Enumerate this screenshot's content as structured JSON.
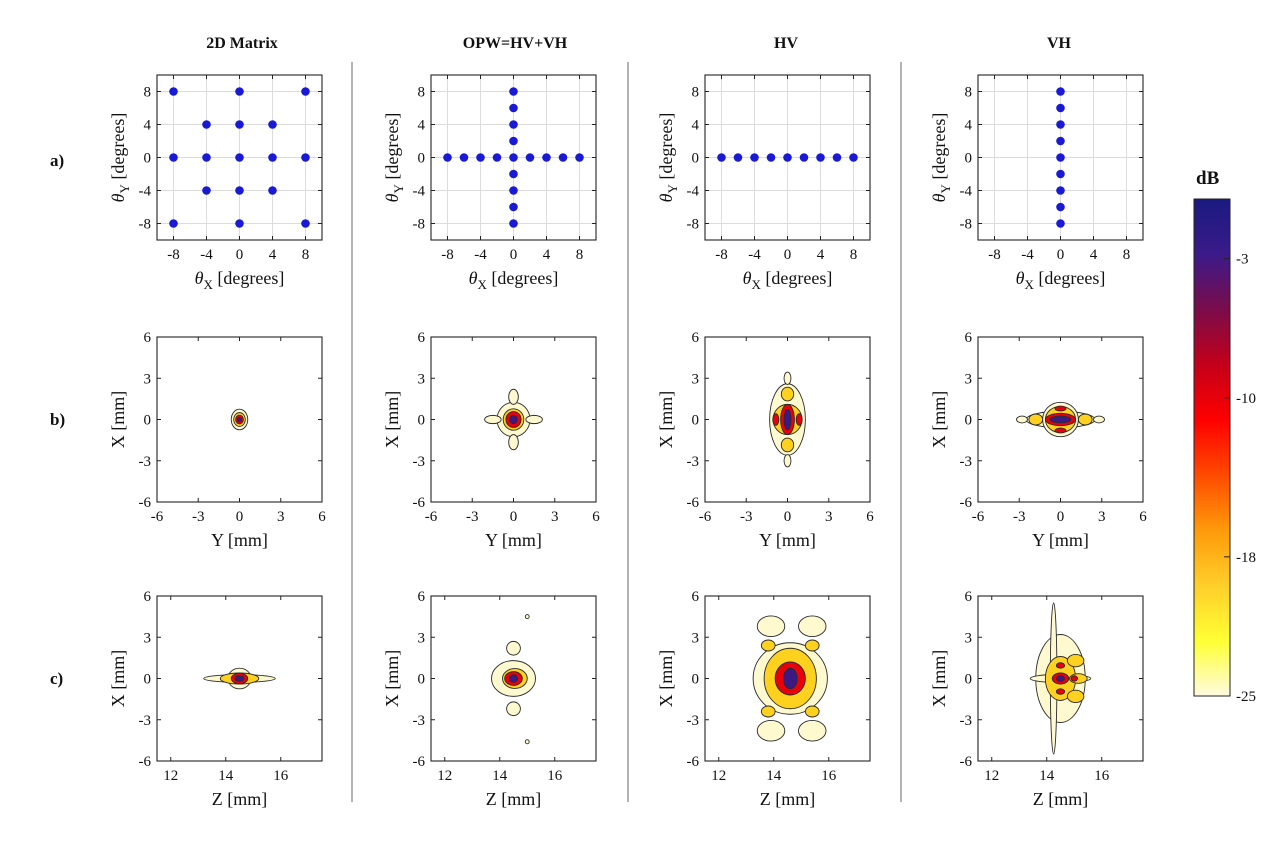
{
  "figure": {
    "columns": [
      "2D Matrix",
      "OPW=HV+VH",
      "HV",
      "VH"
    ],
    "rows": [
      "a)",
      "b)",
      "c)"
    ]
  },
  "chart_data": [
    {
      "row": "a",
      "column": "2D Matrix",
      "type": "scatter",
      "xlabel": "θX [degrees]",
      "ylabel": "θY [degrees]",
      "xlim": [
        -10,
        10
      ],
      "ylim": [
        -10,
        10
      ],
      "xticks": [
        -8,
        -4,
        0,
        4,
        8
      ],
      "yticks": [
        -8,
        -4,
        0,
        4,
        8
      ],
      "grid": true,
      "marker_color": "#1a1ad6",
      "points": [
        [
          -8,
          8
        ],
        [
          0,
          8
        ],
        [
          8,
          8
        ],
        [
          -4,
          4
        ],
        [
          0,
          4
        ],
        [
          4,
          4
        ],
        [
          -8,
          0
        ],
        [
          -4,
          0
        ],
        [
          0,
          0
        ],
        [
          4,
          0
        ],
        [
          8,
          0
        ],
        [
          -4,
          -4
        ],
        [
          0,
          -4
        ],
        [
          4,
          -4
        ],
        [
          -8,
          -8
        ],
        [
          0,
          -8
        ],
        [
          8,
          -8
        ]
      ]
    },
    {
      "row": "a",
      "column": "OPW=HV+VH",
      "type": "scatter",
      "xlabel": "θX [degrees]",
      "ylabel": "θY [degrees]",
      "xlim": [
        -10,
        10
      ],
      "ylim": [
        -10,
        10
      ],
      "xticks": [
        -8,
        -4,
        0,
        4,
        8
      ],
      "yticks": [
        -8,
        -4,
        0,
        4,
        8
      ],
      "grid": true,
      "marker_color": "#1a1ad6",
      "points": [
        [
          -8,
          0
        ],
        [
          -6,
          0
        ],
        [
          -4,
          0
        ],
        [
          -2,
          0
        ],
        [
          0,
          0
        ],
        [
          2,
          0
        ],
        [
          4,
          0
        ],
        [
          6,
          0
        ],
        [
          8,
          0
        ],
        [
          0,
          8
        ],
        [
          0,
          6
        ],
        [
          0,
          4
        ],
        [
          0,
          2
        ],
        [
          0,
          -2
        ],
        [
          0,
          -4
        ],
        [
          0,
          -6
        ],
        [
          0,
          -8
        ]
      ]
    },
    {
      "row": "a",
      "column": "HV",
      "type": "scatter",
      "xlabel": "θX [degrees]",
      "ylabel": "θY [degrees]",
      "xlim": [
        -10,
        10
      ],
      "ylim": [
        -10,
        10
      ],
      "xticks": [
        -8,
        -4,
        0,
        4,
        8
      ],
      "yticks": [
        -8,
        -4,
        0,
        4,
        8
      ],
      "grid": true,
      "marker_color": "#1a1ad6",
      "points": [
        [
          -8,
          0
        ],
        [
          -6,
          0
        ],
        [
          -4,
          0
        ],
        [
          -2,
          0
        ],
        [
          0,
          0
        ],
        [
          2,
          0
        ],
        [
          4,
          0
        ],
        [
          6,
          0
        ],
        [
          8,
          0
        ]
      ]
    },
    {
      "row": "a",
      "column": "VH",
      "type": "scatter",
      "xlabel": "θX [degrees]",
      "ylabel": "θY [degrees]",
      "xlim": [
        -10,
        10
      ],
      "ylim": [
        -10,
        10
      ],
      "xticks": [
        -8,
        -4,
        0,
        4,
        8
      ],
      "yticks": [
        -8,
        -4,
        0,
        4,
        8
      ],
      "grid": true,
      "marker_color": "#1a1ad6",
      "points": [
        [
          0,
          8
        ],
        [
          0,
          6
        ],
        [
          0,
          4
        ],
        [
          0,
          2
        ],
        [
          0,
          0
        ],
        [
          0,
          -2
        ],
        [
          0,
          -4
        ],
        [
          0,
          -6
        ],
        [
          0,
          -8
        ]
      ]
    },
    {
      "row": "b",
      "column": "2D Matrix",
      "type": "heatmap",
      "xlabel": "Y [mm]",
      "ylabel": "X [mm]",
      "xlim": [
        -6,
        6
      ],
      "ylim": [
        -6,
        6
      ],
      "xticks": [
        -6,
        -3,
        0,
        3,
        6
      ],
      "yticks": [
        -6,
        -3,
        0,
        3,
        6
      ],
      "grid": false,
      "contours": [
        {
          "level": -25,
          "shapes": [
            {
              "cx": 0,
              "cy": 0,
              "rx": 0.6,
              "ry": 0.75
            }
          ]
        },
        {
          "level": -18,
          "shapes": [
            {
              "cx": 0,
              "cy": 0,
              "rx": 0.42,
              "ry": 0.5
            }
          ]
        },
        {
          "level": -10,
          "shapes": [
            {
              "cx": 0,
              "cy": 0,
              "rx": 0.28,
              "ry": 0.32
            }
          ]
        },
        {
          "level": -3,
          "shapes": [
            {
              "cx": 0,
              "cy": 0,
              "rx": 0.14,
              "ry": 0.16
            }
          ]
        }
      ]
    },
    {
      "row": "b",
      "column": "OPW=HV+VH",
      "type": "heatmap",
      "xlabel": "Y [mm]",
      "ylabel": "X [mm]",
      "xlim": [
        -6,
        6
      ],
      "ylim": [
        -6,
        6
      ],
      "xticks": [
        -6,
        -3,
        0,
        3,
        6
      ],
      "yticks": [
        -6,
        -3,
        0,
        3,
        6
      ],
      "grid": false,
      "contours": [
        {
          "level": -25,
          "shapes": [
            {
              "cx": 0,
              "cy": 0,
              "rx": 1.2,
              "ry": 1.25
            },
            {
              "cx": 0,
              "cy": 1.65,
              "rx": 0.35,
              "ry": 0.55
            },
            {
              "cx": 0,
              "cy": -1.65,
              "rx": 0.35,
              "ry": 0.55
            },
            {
              "cx": 1.5,
              "cy": 0,
              "rx": 0.6,
              "ry": 0.3
            },
            {
              "cx": -1.5,
              "cy": 0,
              "rx": 0.6,
              "ry": 0.3
            }
          ]
        },
        {
          "level": -18,
          "shapes": [
            {
              "cx": 0,
              "cy": 0,
              "rx": 0.75,
              "ry": 0.78
            }
          ]
        },
        {
          "level": -10,
          "shapes": [
            {
              "cx": 0,
              "cy": 0,
              "rx": 0.55,
              "ry": 0.58
            }
          ]
        },
        {
          "level": -3,
          "shapes": [
            {
              "cx": 0,
              "cy": 0,
              "rx": 0.28,
              "ry": 0.3
            }
          ]
        }
      ]
    },
    {
      "row": "b",
      "column": "HV",
      "type": "heatmap",
      "xlabel": "Y [mm]",
      "ylabel": "X [mm]",
      "xlim": [
        -6,
        6
      ],
      "ylim": [
        -6,
        6
      ],
      "xticks": [
        -6,
        -3,
        0,
        3,
        6
      ],
      "yticks": [
        -6,
        -3,
        0,
        3,
        6
      ],
      "grid": false,
      "contours": [
        {
          "level": -25,
          "shapes": [
            {
              "cx": 0,
              "cy": 0,
              "rx": 1.3,
              "ry": 2.6
            },
            {
              "cx": 0,
              "cy": 3.0,
              "rx": 0.25,
              "ry": 0.45
            },
            {
              "cx": 0,
              "cy": -3.0,
              "rx": 0.25,
              "ry": 0.45
            }
          ]
        },
        {
          "level": -18,
          "shapes": [
            {
              "cx": 0,
              "cy": 0,
              "rx": 1.05,
              "ry": 1.1
            },
            {
              "cx": 0,
              "cy": 1.85,
              "rx": 0.45,
              "ry": 0.5
            },
            {
              "cx": 0,
              "cy": -1.85,
              "rx": 0.45,
              "ry": 0.5
            }
          ]
        },
        {
          "level": -10,
          "shapes": [
            {
              "cx": 0,
              "cy": 0,
              "rx": 0.5,
              "ry": 1.1
            },
            {
              "cx": -0.85,
              "cy": 0,
              "rx": 0.22,
              "ry": 0.42
            },
            {
              "cx": 0.85,
              "cy": 0,
              "rx": 0.22,
              "ry": 0.42
            }
          ]
        },
        {
          "level": -3,
          "shapes": [
            {
              "cx": 0,
              "cy": 0,
              "rx": 0.25,
              "ry": 0.75
            }
          ]
        }
      ]
    },
    {
      "row": "b",
      "column": "VH",
      "type": "heatmap",
      "xlabel": "Y [mm]",
      "ylabel": "X [mm]",
      "xlim": [
        -6,
        6
      ],
      "ylim": [
        -6,
        6
      ],
      "xticks": [
        -6,
        -3,
        0,
        3,
        6
      ],
      "yticks": [
        -6,
        -3,
        0,
        3,
        6
      ],
      "grid": false,
      "contours": [
        {
          "level": -25,
          "shapes": [
            {
              "cx": 0,
              "cy": 0,
              "rx": 2.5,
              "ry": 0.6
            },
            {
              "cx": 0,
              "cy": 0,
              "rx": 1.3,
              "ry": 1.25
            },
            {
              "cx": -2.8,
              "cy": 0,
              "rx": 0.4,
              "ry": 0.25
            },
            {
              "cx": 2.8,
              "cy": 0,
              "rx": 0.4,
              "ry": 0.25
            }
          ]
        },
        {
          "level": -18,
          "shapes": [
            {
              "cx": 0,
              "cy": 0,
              "rx": 1.1,
              "ry": 0.95
            },
            {
              "cx": -1.8,
              "cy": 0,
              "rx": 0.5,
              "ry": 0.4
            },
            {
              "cx": 1.8,
              "cy": 0,
              "rx": 0.5,
              "ry": 0.4
            }
          ]
        },
        {
          "level": -10,
          "shapes": [
            {
              "cx": 0,
              "cy": 0,
              "rx": 1.1,
              "ry": 0.45
            },
            {
              "cx": 0,
              "cy": 0.8,
              "rx": 0.4,
              "ry": 0.18
            },
            {
              "cx": 0,
              "cy": -0.8,
              "rx": 0.4,
              "ry": 0.18
            }
          ]
        },
        {
          "level": -3,
          "shapes": [
            {
              "cx": 0,
              "cy": 0,
              "rx": 0.75,
              "ry": 0.25
            }
          ]
        }
      ]
    },
    {
      "row": "c",
      "column": "2D Matrix",
      "type": "heatmap",
      "xlabel": "Z [mm]",
      "ylabel": "X [mm]",
      "xlim": [
        11.5,
        17.5
      ],
      "ylim": [
        -6,
        6
      ],
      "xticks": [
        12,
        14,
        16
      ],
      "yticks": [
        -6,
        -3,
        0,
        3,
        6
      ],
      "grid": false,
      "contours": [
        {
          "level": -25,
          "shapes": [
            {
              "cx": 14.5,
              "cy": 0,
              "rx": 1.3,
              "ry": 0.28
            },
            {
              "cx": 14.5,
              "cy": 0,
              "rx": 0.42,
              "ry": 0.75
            }
          ]
        },
        {
          "level": -18,
          "shapes": [
            {
              "cx": 14.5,
              "cy": 0,
              "rx": 0.7,
              "ry": 0.4
            }
          ]
        },
        {
          "level": -10,
          "shapes": [
            {
              "cx": 14.5,
              "cy": 0,
              "rx": 0.3,
              "ry": 0.38
            }
          ]
        },
        {
          "level": -3,
          "shapes": [
            {
              "cx": 14.5,
              "cy": 0,
              "rx": 0.16,
              "ry": 0.2
            }
          ]
        }
      ]
    },
    {
      "row": "c",
      "column": "OPW=HV+VH",
      "type": "heatmap",
      "xlabel": "Z [mm]",
      "ylabel": "X [mm]",
      "xlim": [
        11.5,
        17.5
      ],
      "ylim": [
        -6,
        6
      ],
      "xticks": [
        12,
        14,
        16
      ],
      "yticks": [
        -6,
        -3,
        0,
        3,
        6
      ],
      "grid": false,
      "contours": [
        {
          "level": -25,
          "shapes": [
            {
              "cx": 14.5,
              "cy": 0,
              "rx": 0.8,
              "ry": 1.3
            },
            {
              "cx": 14.5,
              "cy": 2.2,
              "rx": 0.25,
              "ry": 0.5
            },
            {
              "cx": 14.5,
              "cy": -2.2,
              "rx": 0.25,
              "ry": 0.5
            },
            {
              "cx": 15.0,
              "cy": 4.5,
              "rx": 0.07,
              "ry": 0.15
            },
            {
              "cx": 15.0,
              "cy": -4.6,
              "rx": 0.07,
              "ry": 0.15
            }
          ]
        },
        {
          "level": -18,
          "shapes": [
            {
              "cx": 14.55,
              "cy": 0,
              "rx": 0.45,
              "ry": 0.72
            }
          ]
        },
        {
          "level": -10,
          "shapes": [
            {
              "cx": 14.5,
              "cy": 0,
              "rx": 0.32,
              "ry": 0.5
            }
          ]
        },
        {
          "level": -3,
          "shapes": [
            {
              "cx": 14.5,
              "cy": 0,
              "rx": 0.15,
              "ry": 0.28
            }
          ]
        }
      ]
    },
    {
      "row": "c",
      "column": "HV",
      "type": "heatmap",
      "xlabel": "Z [mm]",
      "ylabel": "X [mm]",
      "xlim": [
        11.5,
        17.5
      ],
      "ylim": [
        -6,
        6
      ],
      "xticks": [
        12,
        14,
        16
      ],
      "yticks": [
        -6,
        -3,
        0,
        3,
        6
      ],
      "grid": false,
      "contours": [
        {
          "level": -25,
          "shapes": [
            {
              "cx": 14.6,
              "cy": 0,
              "rx": 1.35,
              "ry": 2.6
            },
            {
              "cx": 13.9,
              "cy": 3.8,
              "rx": 0.5,
              "ry": 0.75
            },
            {
              "cx": 15.4,
              "cy": 3.8,
              "rx": 0.5,
              "ry": 0.75
            },
            {
              "cx": 13.9,
              "cy": -3.8,
              "rx": 0.5,
              "ry": 0.75
            },
            {
              "cx": 15.4,
              "cy": -3.8,
              "rx": 0.5,
              "ry": 0.75
            }
          ]
        },
        {
          "level": -18,
          "shapes": [
            {
              "cx": 14.6,
              "cy": 0,
              "rx": 0.95,
              "ry": 2.2
            },
            {
              "cx": 13.8,
              "cy": 2.4,
              "rx": 0.25,
              "ry": 0.4
            },
            {
              "cx": 15.4,
              "cy": 2.4,
              "rx": 0.25,
              "ry": 0.4
            },
            {
              "cx": 13.8,
              "cy": -2.4,
              "rx": 0.25,
              "ry": 0.4
            },
            {
              "cx": 15.4,
              "cy": -2.4,
              "rx": 0.25,
              "ry": 0.4
            }
          ]
        },
        {
          "level": -10,
          "shapes": [
            {
              "cx": 14.6,
              "cy": 0,
              "rx": 0.55,
              "ry": 1.2
            }
          ]
        },
        {
          "level": -3,
          "shapes": [
            {
              "cx": 14.6,
              "cy": 0,
              "rx": 0.25,
              "ry": 0.75
            }
          ]
        }
      ]
    },
    {
      "row": "c",
      "column": "VH",
      "type": "heatmap",
      "xlabel": "Z [mm]",
      "ylabel": "X [mm]",
      "xlim": [
        11.5,
        17.5
      ],
      "ylim": [
        -6,
        6
      ],
      "xticks": [
        12,
        14,
        16
      ],
      "yticks": [
        -6,
        -3,
        0,
        3,
        6
      ],
      "grid": false,
      "contours": [
        {
          "level": -25,
          "shapes": [
            {
              "cx": 14.5,
              "cy": 0,
              "rx": 0.9,
              "ry": 3.2
            },
            {
              "cx": 14.5,
              "cy": 0,
              "rx": 1.1,
              "ry": 0.3
            },
            {
              "cx": 14.25,
              "cy": 0,
              "rx": 0.12,
              "ry": 5.5
            }
          ]
        },
        {
          "level": -18,
          "shapes": [
            {
              "cx": 14.5,
              "cy": 0,
              "rx": 0.55,
              "ry": 1.6
            },
            {
              "cx": 15.05,
              "cy": 1.3,
              "rx": 0.3,
              "ry": 0.45
            },
            {
              "cx": 15.05,
              "cy": -1.3,
              "rx": 0.3,
              "ry": 0.45
            },
            {
              "cx": 15.15,
              "cy": 0,
              "rx": 0.32,
              "ry": 0.35
            }
          ]
        },
        {
          "level": -10,
          "shapes": [
            {
              "cx": 14.5,
              "cy": 0,
              "rx": 0.3,
              "ry": 0.4
            },
            {
              "cx": 14.5,
              "cy": 0.95,
              "rx": 0.15,
              "ry": 0.2
            },
            {
              "cx": 14.5,
              "cy": -0.95,
              "rx": 0.15,
              "ry": 0.2
            },
            {
              "cx": 15.0,
              "cy": 0,
              "rx": 0.12,
              "ry": 0.2
            }
          ]
        },
        {
          "level": -3,
          "shapes": [
            {
              "cx": 14.5,
              "cy": 0,
              "rx": 0.14,
              "ry": 0.22
            }
          ]
        }
      ]
    }
  ],
  "colorbar": {
    "title": "dB",
    "ticks": [
      -3,
      -10,
      -18,
      -25
    ],
    "range": [
      -25,
      0
    ],
    "colors": [
      "#fffbdf",
      "#ffff33",
      "#ffce2a",
      "#ff9a0a",
      "#ff4a00",
      "#ff0000",
      "#c4001a",
      "#7a0c4a",
      "#3b1a8a",
      "#1a1a80"
    ],
    "level_colors": {
      "-25": "#fff9cf",
      "-18": "#ffd11f",
      "-10": "#e8000a",
      "-3": "#3c1a85"
    }
  }
}
